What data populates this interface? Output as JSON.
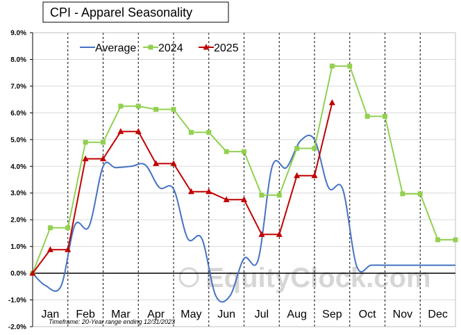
{
  "chart_data": {
    "type": "line",
    "title": "CPI - Apparel Seasonality",
    "footnote": "Timeframe: 20-Year range ending 12/31/2023",
    "watermark": "EquityClock.com",
    "categories": [
      "Jan",
      "Feb",
      "Mar",
      "Apr",
      "May",
      "Jun",
      "Jul",
      "Aug",
      "Sep",
      "Oct",
      "Nov",
      "Dec"
    ],
    "y_ticks": [
      "9.0%",
      "8.0%",
      "7.0%",
      "6.0%",
      "5.0%",
      "4.0%",
      "3.0%",
      "2.0%",
      "1.0%",
      "0.0%",
      "-1.0%",
      "-2.0%"
    ],
    "ylim": [
      -2,
      9
    ],
    "grid": true,
    "legend_position": "top-left",
    "series": [
      {
        "name": "Average",
        "color": "#4472c4",
        "style": "smooth-line",
        "x": [
          0,
          0.35,
          0.8,
          1.2,
          1.6,
          2.0,
          2.35,
          2.8,
          3.2,
          3.6,
          4.0,
          4.4,
          4.8,
          5.2,
          5.6,
          6.0,
          6.4,
          6.8,
          7.2,
          7.6,
          8.0,
          8.4,
          8.8,
          9.2,
          9.6,
          10.0,
          10.4,
          10.8,
          11.2,
          11.6,
          12.0
        ],
        "values": [
          0.0,
          -0.45,
          -0.5,
          1.8,
          1.75,
          4.0,
          3.95,
          4.0,
          4.05,
          3.2,
          3.15,
          1.3,
          1.3,
          -0.85,
          -0.85,
          0.55,
          0.5,
          4.0,
          3.95,
          4.95,
          5.0,
          3.2,
          3.15,
          0.25,
          0.3,
          0.3,
          0.3,
          0.3,
          0.3,
          0.3,
          0.3
        ]
      },
      {
        "name": "2024",
        "color": "#92d050",
        "marker": "square",
        "x": [
          0,
          0.5,
          1.0,
          1.5,
          2.0,
          2.5,
          3.0,
          3.5,
          4.0,
          4.5,
          5.0,
          5.5,
          6.0,
          6.5,
          7.0,
          7.5,
          8.0,
          8.5,
          9.0,
          9.5,
          10.0,
          10.5,
          11.0,
          11.5,
          12.0
        ],
        "values": [
          0.0,
          1.7,
          1.7,
          4.9,
          4.9,
          6.25,
          6.25,
          6.13,
          6.13,
          5.27,
          5.27,
          4.55,
          4.55,
          2.92,
          2.92,
          4.67,
          4.67,
          7.75,
          7.75,
          5.87,
          5.87,
          2.97,
          2.97,
          1.25,
          1.25
        ]
      },
      {
        "name": "2025",
        "color": "#c00000",
        "marker": "triangle",
        "x": [
          0,
          0.5,
          1.0,
          1.5,
          2.0,
          2.5,
          3.0,
          3.5,
          4.0,
          4.5,
          5.0,
          5.5,
          6.0,
          6.5,
          7.0,
          7.5,
          8.0,
          8.5
        ],
        "values": [
          0.0,
          0.88,
          0.88,
          4.28,
          4.28,
          5.3,
          5.3,
          4.1,
          4.1,
          3.05,
          3.05,
          2.75,
          2.75,
          1.45,
          1.45,
          3.65,
          3.65,
          6.38
        ]
      }
    ]
  }
}
